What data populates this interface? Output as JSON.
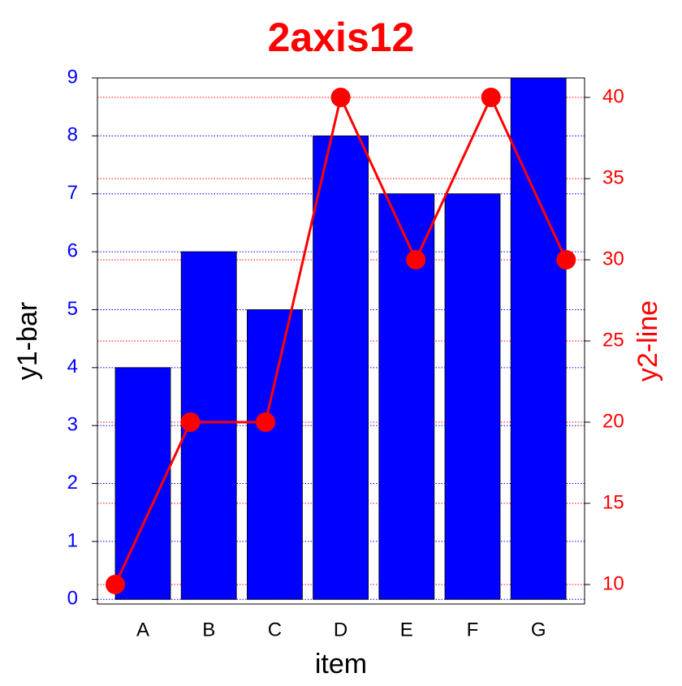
{
  "chart_data": {
    "type": "bar-line",
    "title": "2axis12",
    "xlabel": "item",
    "ylabel": "y1-bar",
    "y2label": "y2-line",
    "categories": [
      "A",
      "B",
      "C",
      "D",
      "E",
      "F",
      "G"
    ],
    "series": [
      {
        "name": "y1-bar",
        "type": "bar",
        "color": "#0000ff",
        "values": [
          4,
          6,
          5,
          8,
          7,
          7,
          9
        ]
      },
      {
        "name": "y2-line",
        "type": "line",
        "color": "#ff0000",
        "axis": "y2",
        "values": [
          10,
          20,
          20,
          40,
          30,
          40,
          30
        ]
      }
    ],
    "ylim": [
      -0.08,
      9
    ],
    "yticks": [
      0,
      1,
      2,
      3,
      4,
      5,
      6,
      7,
      8,
      9
    ],
    "y2lim": [
      8.8,
      41.2
    ],
    "y2ticks": [
      10,
      15,
      20,
      25,
      30,
      35,
      40
    ],
    "grid": true
  }
}
